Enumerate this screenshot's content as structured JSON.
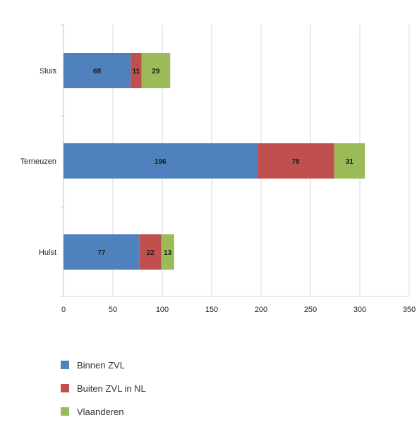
{
  "chart_data": {
    "type": "bar",
    "orientation": "horizontal",
    "stacked": true,
    "categories": [
      "Sluis",
      "Terneuzen",
      "Hulst"
    ],
    "series": [
      {
        "name": "Binnen ZVL",
        "values": [
          68,
          196,
          77
        ],
        "color": "#4f81bd"
      },
      {
        "name": "Buiten ZVL in NL",
        "values": [
          11,
          78,
          22
        ],
        "color": "#c0504d"
      },
      {
        "name": "Vlaanderen",
        "values": [
          29,
          31,
          13
        ],
        "color": "#9bbb59"
      }
    ],
    "xlim": [
      0,
      350
    ],
    "xticks": [
      "0",
      "50",
      "100",
      "150",
      "200",
      "250",
      "300",
      "350"
    ],
    "grid": true,
    "legend": "bottom-left",
    "title": "",
    "xlabel": "",
    "ylabel": ""
  }
}
